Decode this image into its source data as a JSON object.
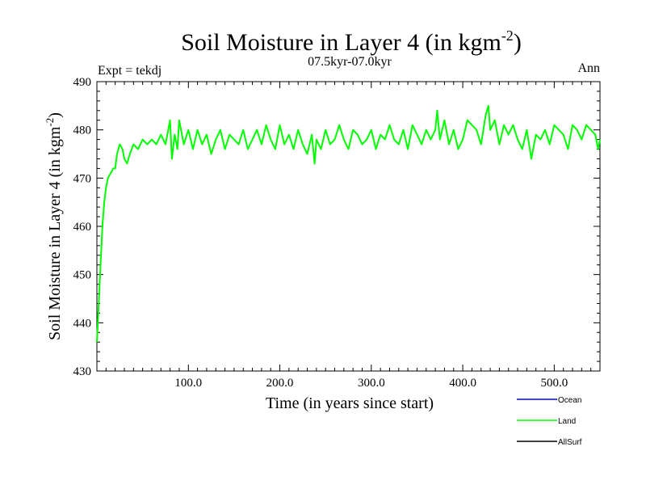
{
  "chart_data": {
    "type": "line",
    "title_main": "Soil Moisture in Layer 4 (in kgm",
    "title_sup": "-2",
    "title_close": ")",
    "subtitle": "07.5kyr-07.0kyr",
    "left_label": "Expt = tekdj",
    "right_label": "Ann",
    "xlabel": "Time (in years since start)",
    "ylabel_main": "Soil Moisture in Layer 4 (in kgm",
    "ylabel_sup": "-2",
    "ylabel_close": ")",
    "xlim": [
      0,
      550
    ],
    "ylim": [
      430,
      490
    ],
    "xticks": [
      100,
      200,
      300,
      400,
      500
    ],
    "xtick_labels": [
      "100.0",
      "200.0",
      "300.0",
      "400.0",
      "500.0"
    ],
    "yticks": [
      430,
      440,
      450,
      460,
      470,
      480,
      490
    ],
    "ytick_labels": [
      "430",
      "440",
      "450",
      "460",
      "470",
      "480",
      "490"
    ],
    "series": [
      {
        "name": "Land",
        "color": "#00ff00",
        "x": [
          0,
          2,
          4,
          6,
          8,
          10,
          12,
          15,
          18,
          20,
          22,
          25,
          28,
          30,
          33,
          36,
          40,
          45,
          50,
          55,
          60,
          65,
          70,
          75,
          80,
          82,
          85,
          88,
          90,
          95,
          100,
          105,
          110,
          115,
          120,
          125,
          130,
          135,
          140,
          145,
          150,
          155,
          160,
          165,
          170,
          175,
          180,
          185,
          190,
          195,
          200,
          205,
          210,
          215,
          220,
          225,
          230,
          235,
          238,
          240,
          245,
          250,
          255,
          260,
          265,
          270,
          275,
          280,
          285,
          290,
          295,
          300,
          305,
          310,
          315,
          320,
          325,
          330,
          335,
          340,
          345,
          350,
          355,
          360,
          365,
          370,
          372,
          375,
          380,
          385,
          390,
          395,
          400,
          405,
          410,
          415,
          420,
          425,
          428,
          430,
          435,
          440,
          445,
          450,
          455,
          460,
          465,
          470,
          475,
          480,
          485,
          490,
          495,
          500,
          505,
          510,
          515,
          520,
          525,
          530,
          535,
          540,
          545,
          548,
          550
        ],
        "values": [
          436,
          444,
          452,
          460,
          465,
          468,
          470,
          471,
          472,
          472,
          475,
          477,
          476,
          474,
          473,
          475,
          477,
          476,
          478,
          477,
          478,
          477,
          479,
          477,
          482,
          474,
          479,
          476,
          482,
          477,
          480,
          476,
          480,
          477,
          479,
          475,
          478,
          480,
          476,
          479,
          478,
          477,
          480,
          476,
          478,
          480,
          477,
          481,
          478,
          476,
          481,
          477,
          479,
          476,
          480,
          477,
          475,
          479,
          473,
          478,
          476,
          480,
          477,
          478,
          481,
          478,
          476,
          480,
          479,
          477,
          478,
          480,
          476,
          479,
          478,
          481,
          478,
          477,
          480,
          476,
          481,
          479,
          477,
          480,
          478,
          480,
          484,
          478,
          482,
          477,
          480,
          476,
          478,
          482,
          481,
          480,
          477,
          483,
          485,
          480,
          482,
          477,
          481,
          479,
          481,
          478,
          476,
          480,
          474,
          479,
          478,
          480,
          477,
          481,
          480,
          479,
          476,
          481,
          480,
          478,
          481,
          480,
          479,
          476,
          478
        ]
      }
    ],
    "legend": [
      {
        "label": "Ocean",
        "color": "#0000ff"
      },
      {
        "label": "Land",
        "color": "#00ff00"
      },
      {
        "label": "AllSurf",
        "color": "#000000"
      }
    ]
  }
}
